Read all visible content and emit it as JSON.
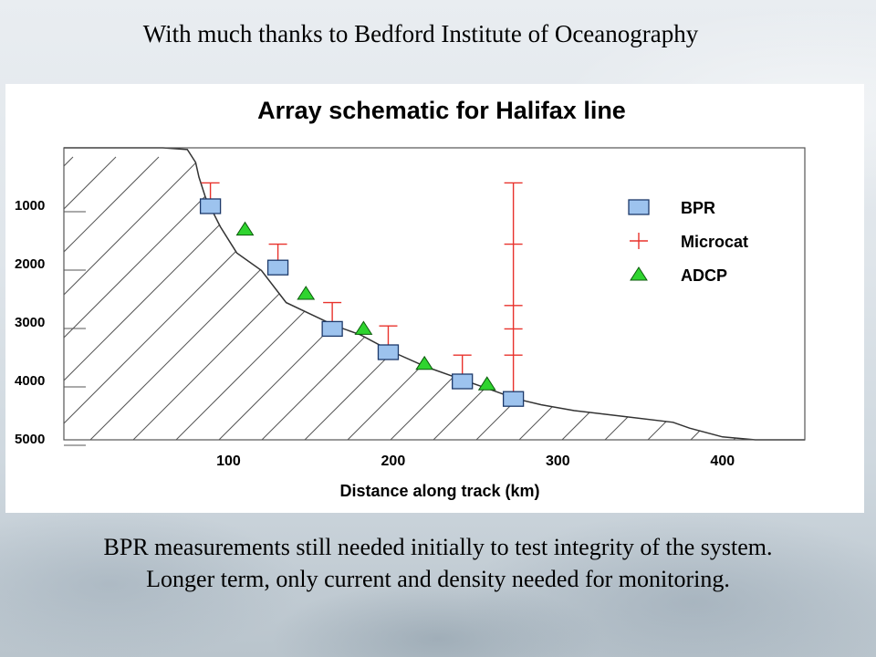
{
  "header": {
    "credit": "With much thanks to Bedford Institute of Oceanography"
  },
  "figure": {
    "title": "Array schematic for Halifax line",
    "xlabel": "Distance along track (km)",
    "x_ticks": [
      "100",
      "200",
      "300",
      "400"
    ],
    "y_ticks": [
      "1000",
      "2000",
      "3000",
      "4000",
      "5000"
    ],
    "legend": [
      {
        "label": "BPR",
        "symbol": "square",
        "color": "#9dc3ee"
      },
      {
        "label": "Microcat",
        "symbol": "plus",
        "color": "#e8322c"
      },
      {
        "label": "ADCP",
        "symbol": "triangle",
        "color": "#2fd42f"
      }
    ],
    "colors": {
      "line": "#333333",
      "microcat": "#e8322c",
      "bpr": "#9dc3ee",
      "adcp": "#2fd42f"
    }
  },
  "chart_data": {
    "type": "scatter",
    "title": "Array schematic for Halifax line",
    "xlabel": "Distance along track (km)",
    "ylabel": "",
    "xlim": [
      0,
      450
    ],
    "ylim": [
      5000,
      0
    ],
    "y_inverted": true,
    "seafloor_profile": {
      "x": [
        0,
        25,
        60,
        75,
        80,
        82,
        86,
        95,
        105,
        120,
        135,
        150,
        165,
        180,
        200,
        220,
        240,
        260,
        275,
        290,
        310,
        340,
        370,
        380,
        400,
        420,
        450
      ],
      "y": [
        0,
        0,
        0,
        30,
        250,
        500,
        850,
        1350,
        1800,
        2100,
        2650,
        2850,
        3050,
        3200,
        3500,
        3750,
        3950,
        4150,
        4300,
        4400,
        4500,
        4600,
        4700,
        4800,
        4950,
        5000,
        5000
      ]
    },
    "series": [
      {
        "name": "BPR",
        "x": [
          89,
          130,
          163,
          197,
          242,
          273
        ],
        "y": [
          1000,
          2050,
          3100,
          3500,
          4000,
          4300
        ]
      },
      {
        "name": "ADCP",
        "x": [
          110,
          147,
          182,
          219,
          257
        ],
        "y": [
          1400,
          2500,
          3100,
          3700,
          4050
        ]
      },
      {
        "name": "Microcat",
        "x": [
          89,
          130,
          163,
          197,
          242,
          273,
          273,
          273,
          273,
          273,
          273
        ],
        "y": [
          600,
          1650,
          2650,
          3050,
          3550,
          600,
          1650,
          2700,
          3100,
          3550,
          4300
        ]
      }
    ],
    "moorings": [
      {
        "x": 89,
        "top": 600,
        "bottom": 1000
      },
      {
        "x": 130,
        "top": 1650,
        "bottom": 2050
      },
      {
        "x": 163,
        "top": 2650,
        "bottom": 3100
      },
      {
        "x": 197,
        "top": 3050,
        "bottom": 3500
      },
      {
        "x": 242,
        "top": 3550,
        "bottom": 4000
      },
      {
        "x": 273,
        "top": 600,
        "bottom": 4300
      }
    ]
  },
  "footer": {
    "line1": "BPR measurements still needed initially to test integrity of the system.",
    "line2": "Longer term, only current and density needed for monitoring."
  }
}
